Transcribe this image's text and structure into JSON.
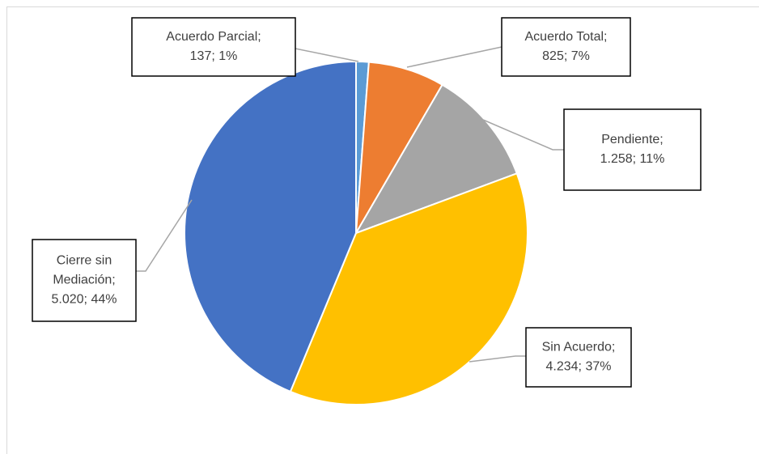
{
  "chart_data": {
    "type": "pie",
    "labels": [
      [
        "Acuerdo Parcial;",
        "137; 1%"
      ],
      [
        "Acuerdo Total;",
        "825; 7%"
      ],
      [
        "Pendiente;",
        "1.258; 11%"
      ],
      [
        "Sin Acuerdo;",
        "4.234; 37%"
      ],
      [
        "Cierre sin",
        "Mediación;",
        "5.020; 44%"
      ]
    ],
    "values": [
      137,
      825,
      1258,
      4234,
      5020
    ],
    "colors": [
      "#5b9bd5",
      "#ed7d31",
      "#a5a5a5",
      "#ffc000",
      "#4472c4"
    ]
  }
}
